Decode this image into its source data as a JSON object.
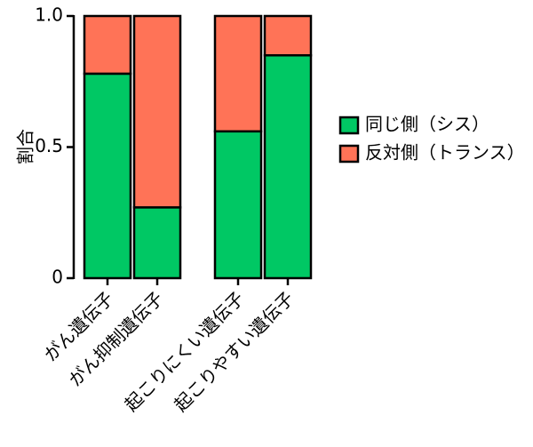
{
  "chart_data": {
    "type": "stacked-bar",
    "y_label": "割合",
    "categories": [
      "がん遺伝子",
      "がん抑制遺伝子",
      "起こりにくい遺伝子",
      "起こりやすい遺伝子"
    ],
    "series": [
      {
        "name": "同じ側（シス）",
        "color": "#00c864",
        "values": [
          0.78,
          0.27,
          0.56,
          0.85
        ]
      },
      {
        "name": "反対側（トランス）",
        "color": "#ff7357",
        "values": [
          0.22,
          0.73,
          0.44,
          0.15
        ]
      }
    ],
    "ylim": [
      0,
      1
    ],
    "yticks": [
      0,
      0.5,
      {
        "value": 1,
        "label": "1.0"
      }
    ],
    "legend": "right"
  }
}
